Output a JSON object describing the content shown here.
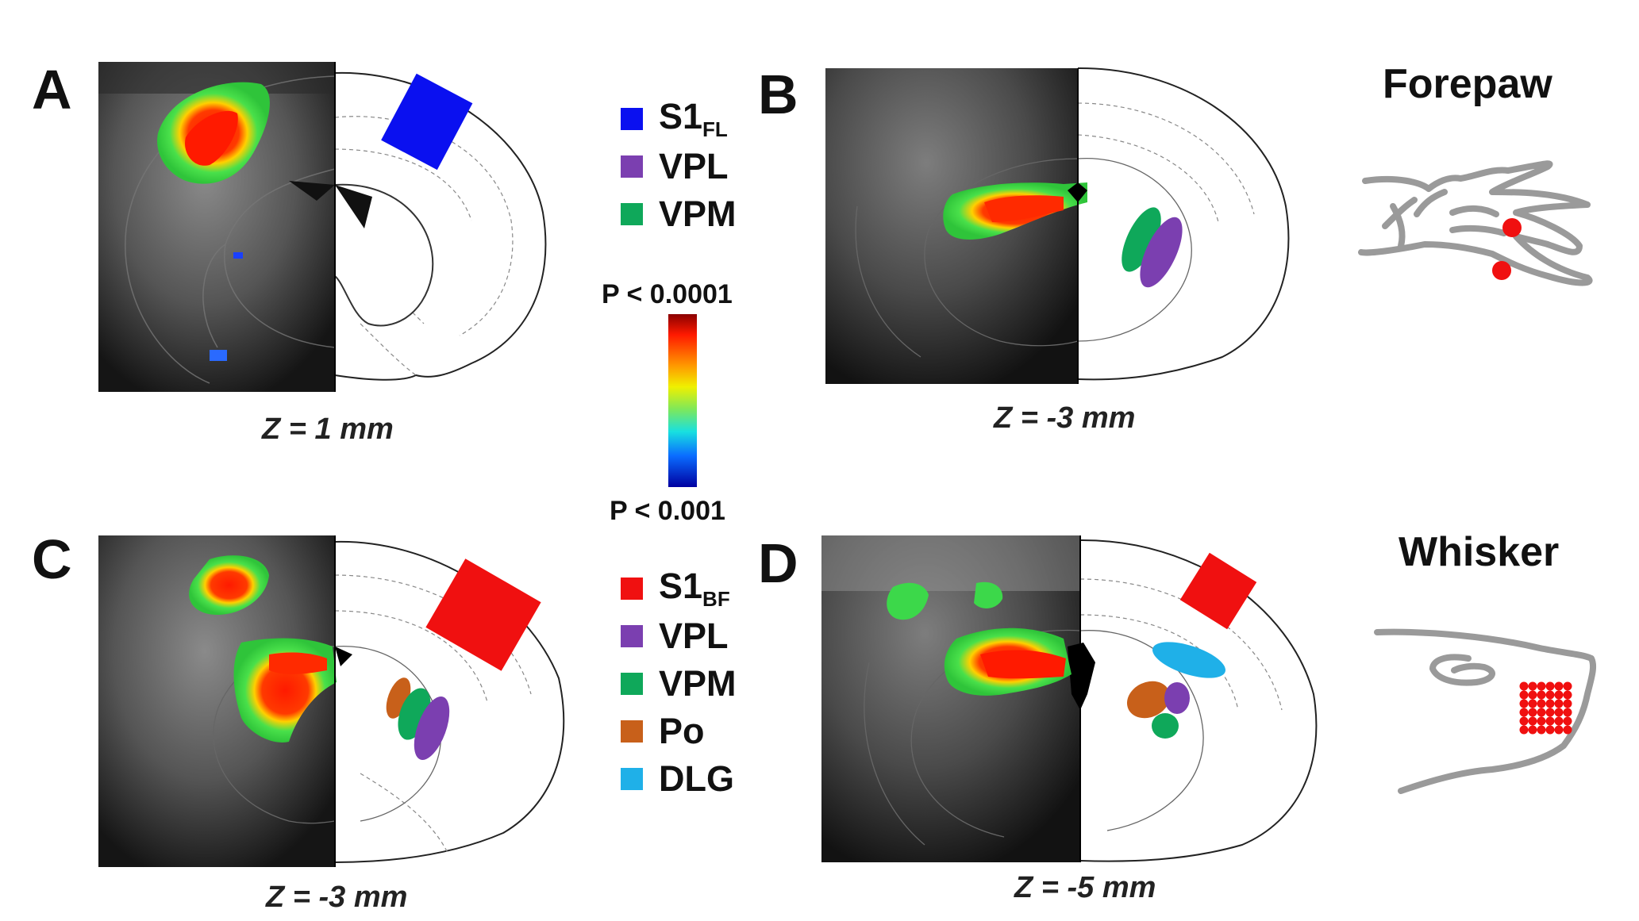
{
  "panels": {
    "A": {
      "label": "A",
      "z": "Z = 1 mm"
    },
    "B": {
      "label": "B",
      "z": "Z = -3 mm"
    },
    "C": {
      "label": "C",
      "z": "Z = -3 mm"
    },
    "D": {
      "label": "D",
      "z": "Z = -5 mm"
    }
  },
  "legend_top": [
    {
      "name": "S1",
      "sub": "FL",
      "color": "#0a10f0"
    },
    {
      "name": "VPL",
      "sub": "",
      "color": "#7b3fb0"
    },
    {
      "name": "VPM",
      "sub": "",
      "color": "#0fa85a"
    }
  ],
  "legend_bottom": [
    {
      "name": "S1",
      "sub": "BF",
      "color": "#f01010"
    },
    {
      "name": "VPL",
      "sub": "",
      "color": "#7b3fb0"
    },
    {
      "name": "VPM",
      "sub": "",
      "color": "#0fa85a"
    },
    {
      "name": "Po",
      "sub": "",
      "color": "#c8601a"
    },
    {
      "name": "DLG",
      "sub": "",
      "color": "#1fb0e8"
    }
  ],
  "colorbar": {
    "top": "P < 0.0001",
    "bottom": "P < 0.001"
  },
  "stimuli": {
    "forepaw": "Forepaw",
    "whisker": "Whisker"
  },
  "colors": {
    "s1fl": "#0a10f0",
    "s1bf": "#f01010",
    "vpl": "#7b3fb0",
    "vpm": "#0fa85a",
    "po": "#c8601a",
    "dlg": "#1fb0e8",
    "dots": "#f01010",
    "outline": "#9a9a9a"
  }
}
